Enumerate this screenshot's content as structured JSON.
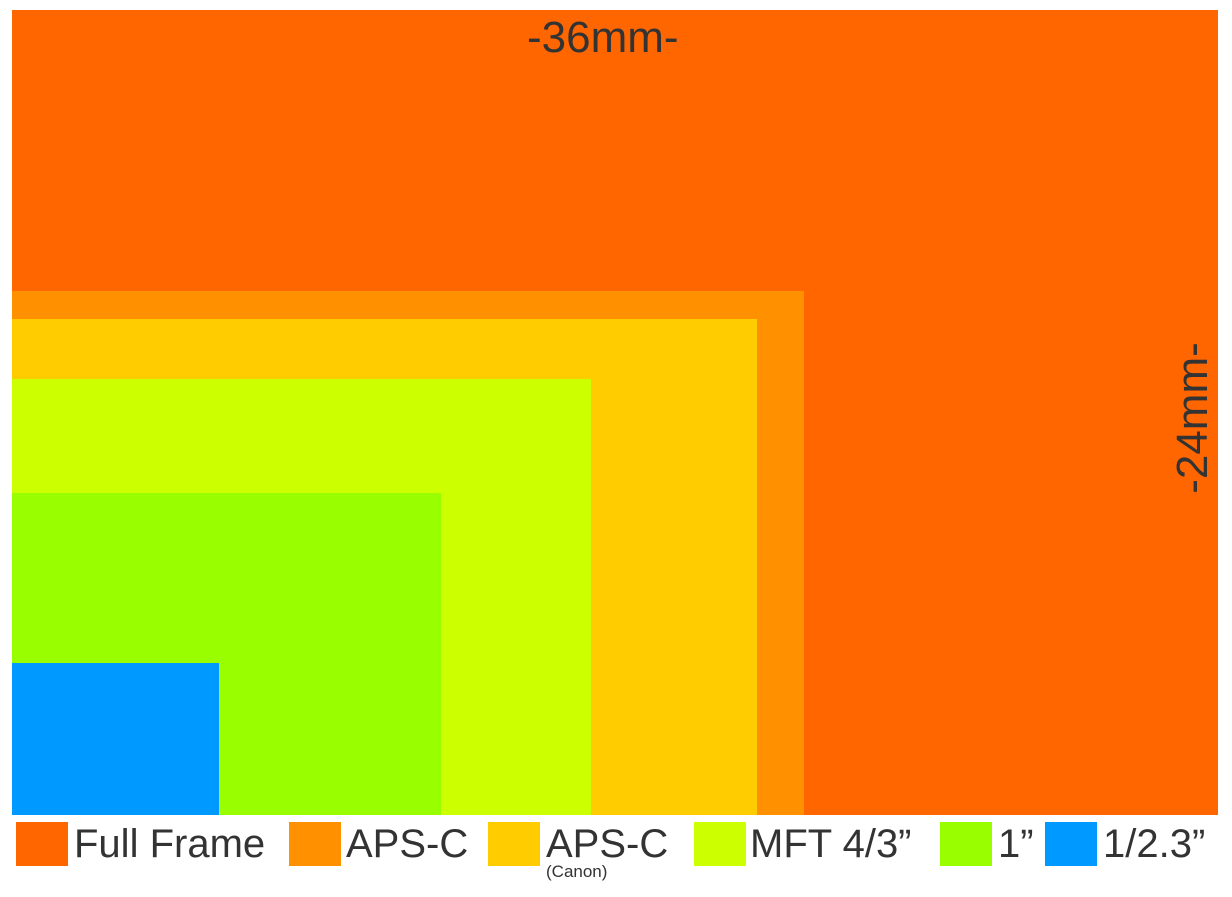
{
  "dimensions": {
    "width_label": "-36mm-",
    "height_label": "-24mm-"
  },
  "sensors": [
    {
      "id": "full-frame",
      "label": "Full Frame",
      "sublabel": "",
      "color": "#FF6600"
    },
    {
      "id": "aps-c",
      "label": "APS-C",
      "sublabel": "",
      "color": "#FF9000"
    },
    {
      "id": "aps-c-canon",
      "label": "APS-C",
      "sublabel": "(Canon)",
      "color": "#FFCC00"
    },
    {
      "id": "mft",
      "label": "MFT 4/3”",
      "sublabel": "",
      "color": "#CCFF00"
    },
    {
      "id": "one-inch",
      "label": "1”",
      "sublabel": "",
      "color": "#99FF00"
    },
    {
      "id": "one-2-3-inch",
      "label": "1/2.3”",
      "sublabel": "",
      "color": "#0099FF"
    }
  ]
}
